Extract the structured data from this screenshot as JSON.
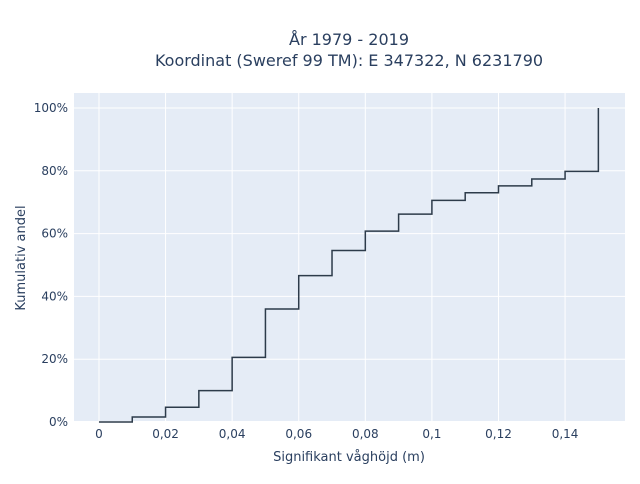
{
  "chart_data": {
    "type": "line",
    "title_lines": [
      "År 1979 - 2019",
      "Koordinat (Sweref 99 TM): E 347322, N 6231790"
    ],
    "xlabel": "Signifikant våghöjd (m)",
    "ylabel": "Kumulativ andel",
    "xlim": [
      -0.0075,
      0.158
    ],
    "ylim": [
      0,
      1.0
    ],
    "x_ticks": [
      0,
      0.02,
      0.04,
      0.06,
      0.08,
      0.1,
      0.12,
      0.14
    ],
    "x_tick_labels": [
      "0",
      "0,02",
      "0,04",
      "0,06",
      "0,08",
      "0,1",
      "0,12",
      "0,14"
    ],
    "y_ticks": [
      0,
      0.2,
      0.4,
      0.6,
      0.8,
      1.0
    ],
    "y_tick_labels": [
      "0%",
      "20%",
      "40%",
      "60%",
      "80%",
      "100%"
    ],
    "grid": true,
    "line_shape": "step-hv",
    "series": [
      {
        "x": [
          0,
          0.01,
          0.02,
          0.03,
          0.04,
          0.05,
          0.06,
          0.07,
          0.08,
          0.09,
          0.1,
          0.11,
          0.12,
          0.13,
          0.14,
          0.15,
          0.15
        ],
        "y": [
          0,
          0.016,
          0.047,
          0.1,
          0.206,
          0.36,
          0.466,
          0.546,
          0.608,
          0.662,
          0.706,
          0.73,
          0.752,
          0.774,
          0.798,
          0.798,
          1.0
        ],
        "color": "#2d3b4a"
      }
    ]
  }
}
